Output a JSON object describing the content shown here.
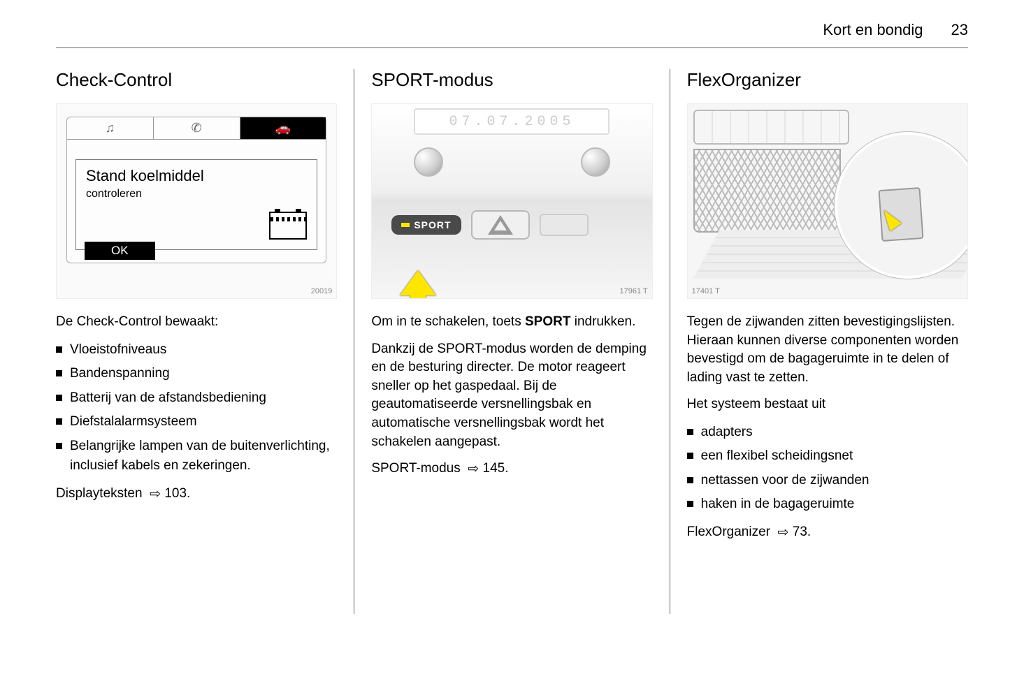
{
  "page": {
    "chapter": "Kort en bondig",
    "number": "23"
  },
  "col1": {
    "heading": "Check-Control",
    "display": {
      "tabs": {
        "music": "♫",
        "phone": "✆",
        "car": "🚗"
      },
      "msg_title": "Stand koelmiddel",
      "msg_sub": "controleren",
      "ok": "OK"
    },
    "fig_id": "20019",
    "intro": "De Check-Control bewaakt:",
    "items": [
      "Vloeistofniveaus",
      "Bandenspanning",
      "Batterij van de afstandsbediening",
      "Diefstalalarmsysteem",
      "Belangrijke lampen van de buitenverlichting, inclusief kabels en zekeringen."
    ],
    "ref": {
      "label": "Displayteksten",
      "page": "103"
    }
  },
  "col2": {
    "heading": "SPORT-modus",
    "date": "07.07.2005",
    "sport_label": "SPORT",
    "fig_id": "17961 T",
    "p1a": "Om in te schakelen, toets ",
    "p1b": "SPORT",
    "p1c": " indrukken.",
    "p2": "Dankzij de SPORT-modus worden de demping en de besturing directer. De motor reageert sneller op het gaspedaal. Bij de geautomatiseerde versnellingsbak en automatische versnellingsbak wordt het schakelen aangepast.",
    "ref": {
      "label": "SPORT-modus",
      "page": "145"
    }
  },
  "col3": {
    "heading": "FlexOrganizer",
    "fig_id": "17401 T",
    "p1": "Tegen de zijwanden zitten bevestigingslijsten. Hieraan kunnen diverse componenten worden bevestigd om de bagageruimte in te delen of lading vast te zetten.",
    "p2": "Het systeem bestaat uit",
    "items": [
      "adapters",
      "een flexibel scheidingsnet",
      "nettassen voor de zijwanden",
      "haken in de bagageruimte"
    ],
    "ref": {
      "label": "FlexOrganizer",
      "page": "73"
    }
  },
  "style": {
    "text_color": "#000000",
    "bg_color": "#ffffff",
    "divider_color": "#666666",
    "accent_yellow": "#ffe600",
    "heading_fontsize": 26,
    "body_fontsize": 19
  }
}
